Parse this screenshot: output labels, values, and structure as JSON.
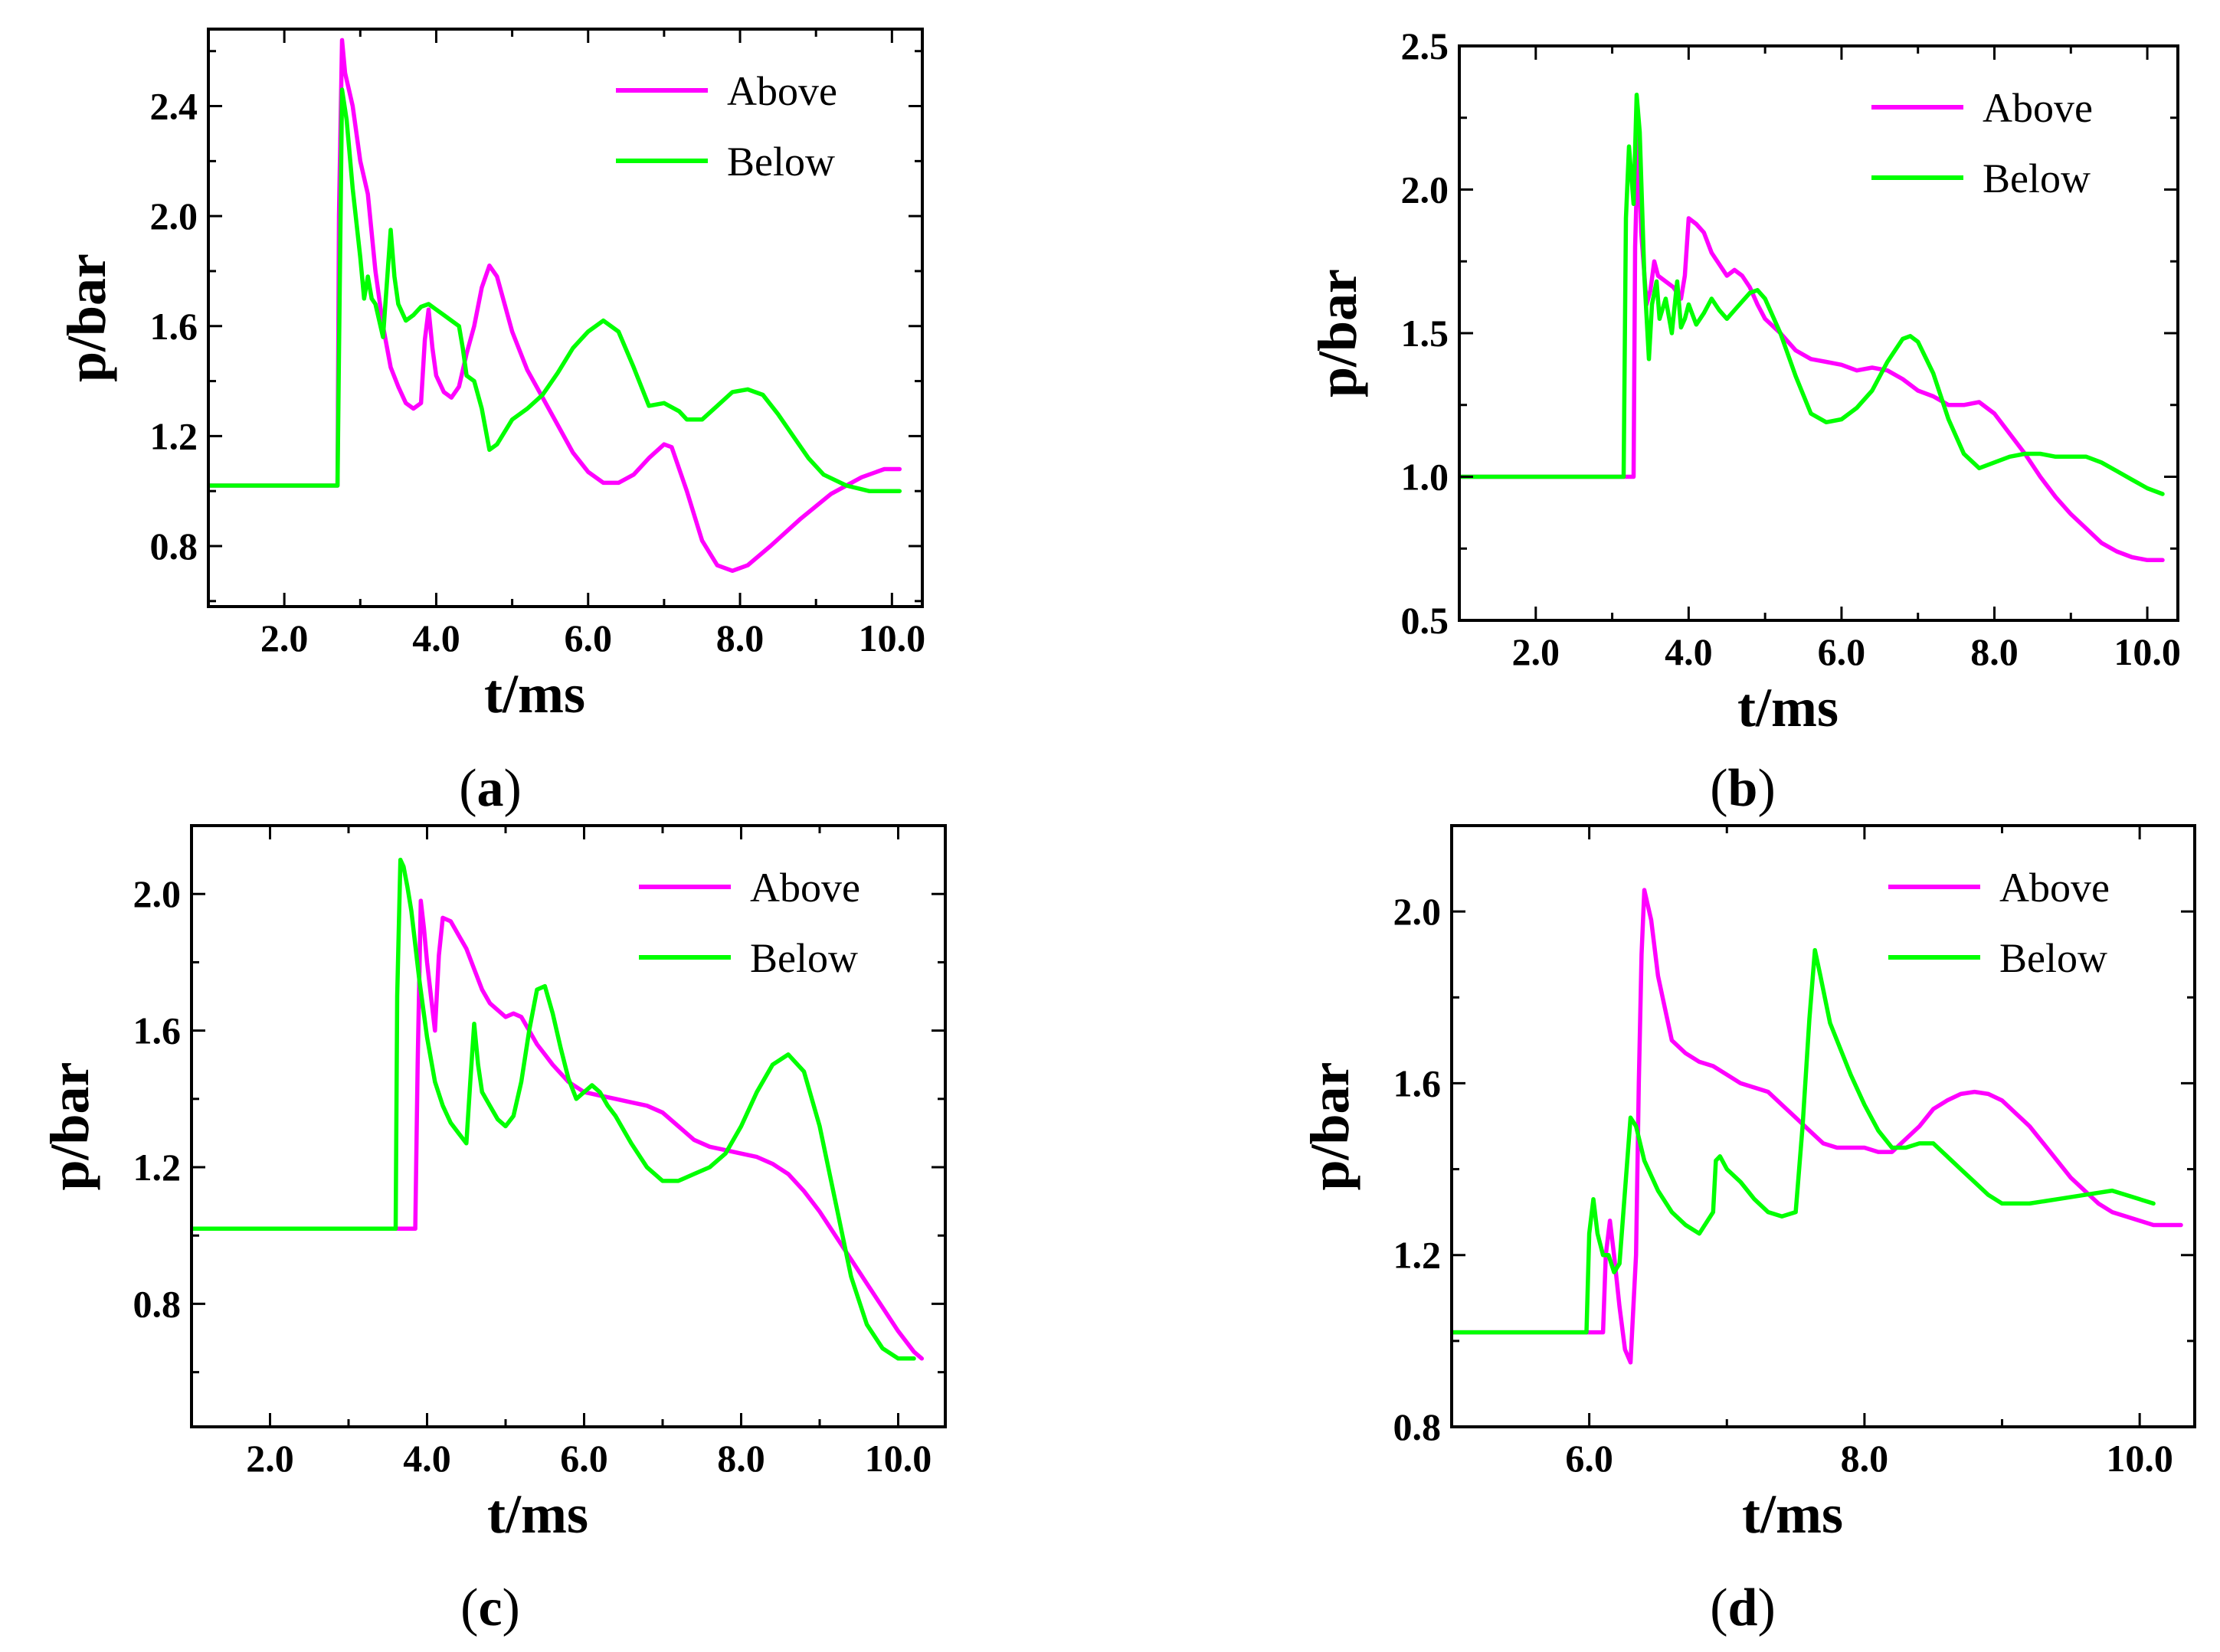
{
  "colors": {
    "above": "#ff00ff",
    "below": "#00ff00"
  },
  "chart_data": [
    {
      "id": "a",
      "panel_label": "a",
      "type": "line",
      "xlabel": "t/ms",
      "ylabel": "p/bar",
      "xlim": [
        1.0,
        10.4
      ],
      "ylim": [
        0.58,
        2.68
      ],
      "xticks": [
        2.0,
        4.0,
        6.0,
        8.0,
        10.0
      ],
      "xtick_labels": [
        "2.0",
        "4.0",
        "6.0",
        "8.0",
        "10.0"
      ],
      "yticks": [
        0.8,
        1.2,
        1.6,
        2.0,
        2.4
      ],
      "ytick_labels": [
        "0.8",
        "1.2",
        "1.6",
        "2.0",
        "2.4"
      ],
      "legend": {
        "position": "top-right",
        "entries": [
          "Above",
          "Below"
        ]
      },
      "series": [
        {
          "name": "Above",
          "color": "#ff00ff",
          "x": [
            1.0,
            2.7,
            2.72,
            2.76,
            2.8,
            2.9,
            3.0,
            3.1,
            3.2,
            3.3,
            3.4,
            3.5,
            3.6,
            3.7,
            3.8,
            3.85,
            3.9,
            3.95,
            4.0,
            4.1,
            4.2,
            4.3,
            4.4,
            4.5,
            4.6,
            4.7,
            4.8,
            4.9,
            5.0,
            5.2,
            5.4,
            5.6,
            5.8,
            6.0,
            6.2,
            6.4,
            6.6,
            6.8,
            7.0,
            7.1,
            7.3,
            7.5,
            7.7,
            7.9,
            8.1,
            8.4,
            8.8,
            9.2,
            9.6,
            9.9,
            10.1
          ],
          "y": [
            1.02,
            1.02,
            2.0,
            2.64,
            2.52,
            2.4,
            2.2,
            2.08,
            1.8,
            1.6,
            1.45,
            1.38,
            1.32,
            1.3,
            1.32,
            1.55,
            1.66,
            1.52,
            1.42,
            1.36,
            1.34,
            1.38,
            1.5,
            1.6,
            1.74,
            1.82,
            1.78,
            1.68,
            1.58,
            1.44,
            1.34,
            1.24,
            1.14,
            1.07,
            1.03,
            1.03,
            1.06,
            1.12,
            1.17,
            1.16,
            1.0,
            0.82,
            0.73,
            0.71,
            0.73,
            0.8,
            0.9,
            0.99,
            1.05,
            1.08,
            1.08
          ]
        },
        {
          "name": "Below",
          "color": "#00ff00",
          "x": [
            1.0,
            2.7,
            2.72,
            2.76,
            2.82,
            2.9,
            3.0,
            3.05,
            3.1,
            3.15,
            3.2,
            3.3,
            3.4,
            3.45,
            3.5,
            3.6,
            3.7,
            3.8,
            3.9,
            4.0,
            4.1,
            4.2,
            4.3,
            4.35,
            4.4,
            4.5,
            4.6,
            4.7,
            4.8,
            5.0,
            5.2,
            5.4,
            5.6,
            5.8,
            6.0,
            6.2,
            6.4,
            6.6,
            6.8,
            7.0,
            7.2,
            7.3,
            7.5,
            7.7,
            7.9,
            8.1,
            8.3,
            8.5,
            8.7,
            8.9,
            9.1,
            9.4,
            9.7,
            10.1
          ],
          "y": [
            1.02,
            1.02,
            1.5,
            2.46,
            2.35,
            2.1,
            1.85,
            1.7,
            1.78,
            1.7,
            1.68,
            1.56,
            1.95,
            1.78,
            1.68,
            1.62,
            1.64,
            1.67,
            1.68,
            1.66,
            1.64,
            1.62,
            1.6,
            1.52,
            1.42,
            1.4,
            1.3,
            1.15,
            1.17,
            1.26,
            1.3,
            1.35,
            1.43,
            1.52,
            1.58,
            1.62,
            1.58,
            1.45,
            1.31,
            1.32,
            1.29,
            1.26,
            1.26,
            1.31,
            1.36,
            1.37,
            1.35,
            1.28,
            1.2,
            1.12,
            1.06,
            1.02,
            1.0,
            1.0
          ]
        }
      ]
    },
    {
      "id": "b",
      "panel_label": "b",
      "type": "line",
      "xlabel": "t/ms",
      "ylabel": "p/bar",
      "xlim": [
        1.0,
        10.4
      ],
      "ylim": [
        0.5,
        2.5
      ],
      "xticks": [
        2.0,
        4.0,
        6.0,
        8.0,
        10.0
      ],
      "xtick_labels": [
        "2.0",
        "4.0",
        "6.0",
        "8.0",
        "10.0"
      ],
      "yticks": [
        0.5,
        1.0,
        1.5,
        2.0,
        2.5
      ],
      "ytick_labels": [
        "0.5",
        "1.0",
        "1.5",
        "2.0",
        "2.5"
      ],
      "legend": {
        "position": "top-right",
        "entries": [
          "Above",
          "Below"
        ]
      },
      "series": [
        {
          "name": "Above",
          "color": "#ff00ff",
          "x": [
            1.0,
            3.28,
            3.3,
            3.34,
            3.38,
            3.45,
            3.5,
            3.55,
            3.6,
            3.7,
            3.8,
            3.9,
            3.95,
            4.0,
            4.1,
            4.2,
            4.3,
            4.4,
            4.5,
            4.6,
            4.7,
            4.8,
            4.9,
            5.0,
            5.2,
            5.4,
            5.6,
            5.8,
            6.0,
            6.2,
            6.4,
            6.6,
            6.8,
            7.0,
            7.2,
            7.4,
            7.6,
            7.8,
            8.0,
            8.2,
            8.4,
            8.6,
            8.8,
            9.0,
            9.2,
            9.4,
            9.6,
            9.8,
            10.0,
            10.2
          ],
          "y": [
            1.0,
            1.0,
            1.8,
            2.2,
            1.85,
            1.6,
            1.65,
            1.75,
            1.7,
            1.68,
            1.66,
            1.62,
            1.7,
            1.9,
            1.88,
            1.85,
            1.78,
            1.74,
            1.7,
            1.72,
            1.7,
            1.66,
            1.6,
            1.55,
            1.5,
            1.44,
            1.41,
            1.4,
            1.39,
            1.37,
            1.38,
            1.37,
            1.34,
            1.3,
            1.28,
            1.25,
            1.25,
            1.26,
            1.22,
            1.15,
            1.08,
            1.0,
            0.93,
            0.87,
            0.82,
            0.77,
            0.74,
            0.72,
            0.71,
            0.71
          ]
        },
        {
          "name": "Below",
          "color": "#00ff00",
          "x": [
            1.0,
            3.15,
            3.18,
            3.22,
            3.28,
            3.32,
            3.36,
            3.42,
            3.48,
            3.52,
            3.58,
            3.62,
            3.7,
            3.78,
            3.85,
            3.9,
            3.95,
            4.0,
            4.1,
            4.2,
            4.3,
            4.4,
            4.5,
            4.6,
            4.7,
            4.8,
            4.9,
            5.0,
            5.2,
            5.4,
            5.6,
            5.8,
            6.0,
            6.2,
            6.4,
            6.6,
            6.8,
            6.9,
            7.0,
            7.2,
            7.4,
            7.6,
            7.8,
            8.0,
            8.2,
            8.4,
            8.6,
            8.8,
            9.0,
            9.2,
            9.4,
            9.6,
            9.8,
            10.0,
            10.2
          ],
          "y": [
            1.0,
            1.0,
            1.9,
            2.15,
            1.95,
            2.33,
            2.2,
            1.7,
            1.41,
            1.6,
            1.68,
            1.55,
            1.62,
            1.5,
            1.68,
            1.52,
            1.55,
            1.6,
            1.53,
            1.57,
            1.62,
            1.58,
            1.55,
            1.58,
            1.61,
            1.64,
            1.65,
            1.62,
            1.5,
            1.35,
            1.22,
            1.19,
            1.2,
            1.24,
            1.3,
            1.4,
            1.48,
            1.49,
            1.47,
            1.36,
            1.2,
            1.08,
            1.03,
            1.05,
            1.07,
            1.08,
            1.08,
            1.07,
            1.07,
            1.07,
            1.05,
            1.02,
            0.99,
            0.96,
            0.94
          ]
        }
      ]
    },
    {
      "id": "c",
      "panel_label": "c",
      "type": "line",
      "xlabel": "t/ms",
      "ylabel": "p/bar",
      "xlim": [
        1.0,
        10.6
      ],
      "ylim": [
        0.44,
        2.2
      ],
      "xticks": [
        2.0,
        4.0,
        6.0,
        8.0,
        10.0
      ],
      "xtick_labels": [
        "2.0",
        "4.0",
        "6.0",
        "8.0",
        "10.0"
      ],
      "yticks": [
        0.8,
        1.2,
        1.6,
        2.0
      ],
      "ytick_labels": [
        "0.8",
        "1.2",
        "1.6",
        "2.0"
      ],
      "legend": {
        "position": "top-right",
        "entries": [
          "Above",
          "Below"
        ]
      },
      "series": [
        {
          "name": "Above",
          "color": "#ff00ff",
          "x": [
            1.0,
            3.85,
            3.88,
            3.92,
            3.96,
            4.0,
            4.05,
            4.1,
            4.15,
            4.2,
            4.3,
            4.4,
            4.5,
            4.6,
            4.7,
            4.8,
            4.9,
            5.0,
            5.1,
            5.2,
            5.3,
            5.4,
            5.5,
            5.6,
            5.8,
            6.0,
            6.2,
            6.4,
            6.6,
            6.8,
            7.0,
            7.2,
            7.4,
            7.6,
            7.8,
            8.0,
            8.2,
            8.4,
            8.6,
            8.8,
            9.0,
            9.2,
            9.4,
            9.6,
            9.8,
            10.0,
            10.2,
            10.3
          ],
          "y": [
            1.02,
            1.02,
            1.5,
            1.98,
            1.9,
            1.8,
            1.7,
            1.6,
            1.82,
            1.93,
            1.92,
            1.88,
            1.84,
            1.78,
            1.72,
            1.68,
            1.66,
            1.64,
            1.65,
            1.64,
            1.6,
            1.56,
            1.53,
            1.5,
            1.45,
            1.42,
            1.41,
            1.4,
            1.39,
            1.38,
            1.36,
            1.32,
            1.28,
            1.26,
            1.25,
            1.24,
            1.23,
            1.21,
            1.18,
            1.13,
            1.07,
            1.0,
            0.93,
            0.86,
            0.79,
            0.72,
            0.66,
            0.64
          ]
        },
        {
          "name": "Below",
          "color": "#00ff00",
          "x": [
            1.0,
            3.6,
            3.62,
            3.66,
            3.7,
            3.75,
            3.8,
            3.9,
            4.0,
            4.1,
            4.2,
            4.3,
            4.4,
            4.5,
            4.55,
            4.6,
            4.65,
            4.7,
            4.8,
            4.9,
            5.0,
            5.1,
            5.2,
            5.3,
            5.4,
            5.5,
            5.6,
            5.7,
            5.8,
            5.9,
            6.0,
            6.1,
            6.2,
            6.3,
            6.4,
            6.6,
            6.8,
            7.0,
            7.2,
            7.4,
            7.6,
            7.8,
            8.0,
            8.2,
            8.4,
            8.6,
            8.8,
            9.0,
            9.2,
            9.4,
            9.6,
            9.8,
            10.0,
            10.2
          ],
          "y": [
            1.02,
            1.02,
            1.7,
            2.1,
            2.08,
            2.02,
            1.95,
            1.75,
            1.58,
            1.45,
            1.38,
            1.33,
            1.3,
            1.27,
            1.45,
            1.62,
            1.5,
            1.42,
            1.38,
            1.34,
            1.32,
            1.35,
            1.45,
            1.6,
            1.72,
            1.73,
            1.65,
            1.55,
            1.46,
            1.4,
            1.42,
            1.44,
            1.42,
            1.38,
            1.35,
            1.27,
            1.2,
            1.16,
            1.16,
            1.18,
            1.2,
            1.24,
            1.32,
            1.42,
            1.5,
            1.53,
            1.48,
            1.32,
            1.1,
            0.88,
            0.74,
            0.67,
            0.64,
            0.64
          ]
        }
      ]
    },
    {
      "id": "d",
      "panel_label": "d",
      "type": "line",
      "xlabel": "t/ms",
      "ylabel": "p/bar",
      "xlim": [
        5.0,
        10.4
      ],
      "ylim": [
        0.8,
        2.2
      ],
      "xticks": [
        6.0,
        8.0,
        10.0
      ],
      "xtick_labels": [
        "6.0",
        "8.0",
        "10.0"
      ],
      "yticks": [
        0.8,
        1.2,
        1.6,
        2.0
      ],
      "ytick_labels": [
        "0.8",
        "1.2",
        "1.6",
        "2.0"
      ],
      "legend": {
        "position": "top-right",
        "entries": [
          "Above",
          "Below"
        ]
      },
      "series": [
        {
          "name": "Above",
          "color": "#ff00ff",
          "x": [
            5.0,
            6.1,
            6.12,
            6.15,
            6.18,
            6.22,
            6.26,
            6.3,
            6.34,
            6.36,
            6.38,
            6.4,
            6.45,
            6.5,
            6.6,
            6.7,
            6.8,
            6.9,
            7.0,
            7.1,
            7.2,
            7.3,
            7.4,
            7.5,
            7.6,
            7.7,
            7.8,
            7.9,
            8.0,
            8.1,
            8.2,
            8.3,
            8.4,
            8.5,
            8.6,
            8.7,
            8.8,
            8.9,
            9.0,
            9.1,
            9.2,
            9.3,
            9.4,
            9.5,
            9.6,
            9.7,
            9.8,
            9.9,
            10.0,
            10.1,
            10.2,
            10.3
          ],
          "y": [
            1.02,
            1.02,
            1.2,
            1.28,
            1.2,
            1.08,
            0.98,
            0.95,
            1.2,
            1.6,
            1.9,
            2.05,
            1.98,
            1.85,
            1.7,
            1.67,
            1.65,
            1.64,
            1.62,
            1.6,
            1.59,
            1.58,
            1.55,
            1.52,
            1.49,
            1.46,
            1.45,
            1.45,
            1.45,
            1.44,
            1.44,
            1.47,
            1.5,
            1.54,
            1.56,
            1.575,
            1.58,
            1.575,
            1.56,
            1.53,
            1.5,
            1.46,
            1.42,
            1.38,
            1.35,
            1.32,
            1.3,
            1.29,
            1.28,
            1.27,
            1.27,
            1.27
          ]
        },
        {
          "name": "Below",
          "color": "#00ff00",
          "x": [
            5.0,
            5.98,
            6.0,
            6.03,
            6.06,
            6.1,
            6.14,
            6.18,
            6.22,
            6.26,
            6.3,
            6.34,
            6.4,
            6.5,
            6.6,
            6.7,
            6.8,
            6.9,
            6.92,
            6.95,
            7.0,
            7.1,
            7.2,
            7.3,
            7.4,
            7.5,
            7.55,
            7.6,
            7.64,
            7.68,
            7.75,
            7.8,
            7.9,
            8.0,
            8.1,
            8.2,
            8.3,
            8.4,
            8.5,
            8.6,
            8.7,
            8.8,
            8.9,
            9.0,
            9.2,
            9.4,
            9.6,
            9.8,
            10.0,
            10.1
          ],
          "y": [
            1.02,
            1.02,
            1.25,
            1.33,
            1.25,
            1.2,
            1.2,
            1.16,
            1.18,
            1.35,
            1.52,
            1.5,
            1.42,
            1.35,
            1.3,
            1.27,
            1.25,
            1.3,
            1.42,
            1.43,
            1.4,
            1.37,
            1.33,
            1.3,
            1.29,
            1.3,
            1.5,
            1.75,
            1.91,
            1.85,
            1.74,
            1.7,
            1.62,
            1.55,
            1.49,
            1.45,
            1.45,
            1.46,
            1.46,
            1.43,
            1.4,
            1.37,
            1.34,
            1.32,
            1.32,
            1.33,
            1.34,
            1.35,
            1.33,
            1.32
          ]
        }
      ]
    }
  ]
}
